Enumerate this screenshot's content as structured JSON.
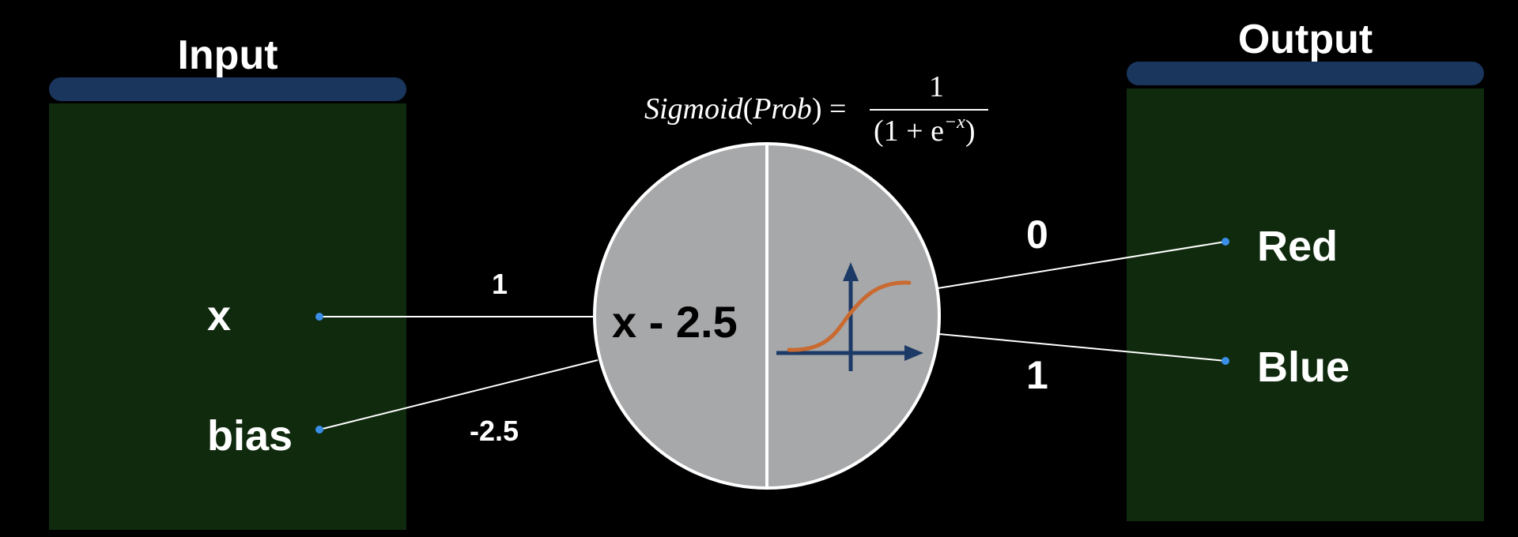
{
  "input_panel": {
    "title": "Input",
    "nodes": [
      {
        "label": "x"
      },
      {
        "label": "bias"
      }
    ]
  },
  "output_panel": {
    "title": "Output",
    "nodes": [
      {
        "label": "Red"
      },
      {
        "label": "Blue"
      }
    ]
  },
  "edges": {
    "x_weight": "1",
    "bias_weight": "-2.5",
    "out_red_value": "0",
    "out_blue_value": "1"
  },
  "neuron": {
    "expression": "x - 2.5",
    "activation_icon": "sigmoid-curve-icon"
  },
  "formula": {
    "lhs_func": "Sigmoid",
    "lhs_arg": "Prob",
    "equals": "=",
    "numerator": "1",
    "denominator_base": "(1 + e",
    "denominator_exp": "−x",
    "denominator_close": ")"
  },
  "colors": {
    "background": "#000000",
    "panel_fill": "#0f2a0d",
    "panel_bar": "#1a365d",
    "neuron_fill": "#a7a8aa",
    "node_dot": "#3a8ee6",
    "axis": "#1b3a66",
    "curve": "#c96a30"
  }
}
